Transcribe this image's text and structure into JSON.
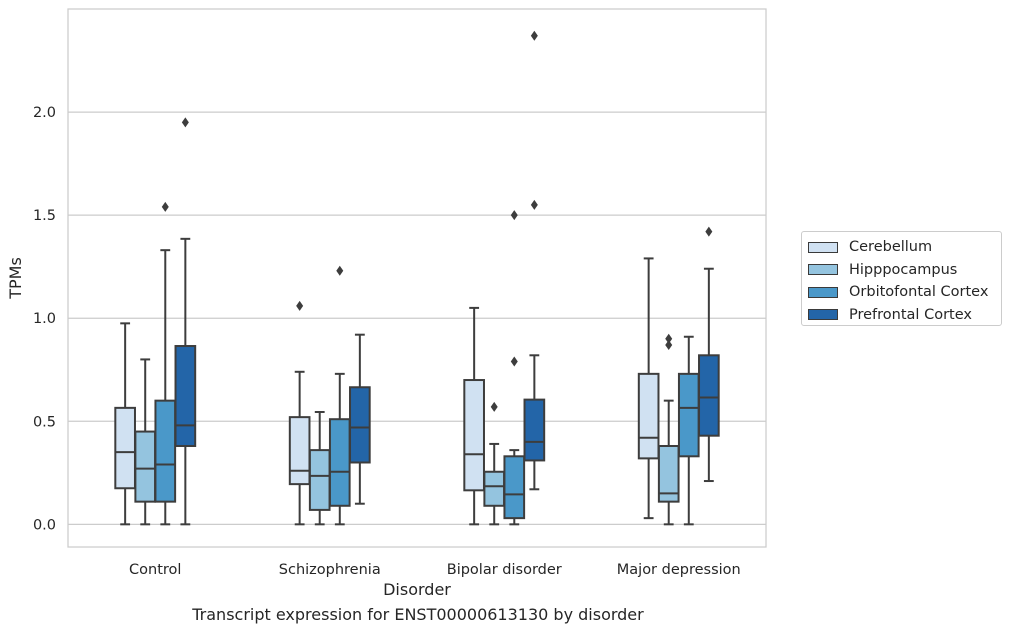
{
  "caption": "Transcript expression for ENST00000613130 by disorder",
  "chart_data": {
    "type": "box",
    "xlabel": "Disorder",
    "ylabel": "TPMs",
    "ylim": [
      -0.11,
      2.5
    ],
    "yticks": [
      0.0,
      0.5,
      1.0,
      1.5,
      2.0
    ],
    "ytick_labels": [
      "0.0",
      "0.5",
      "1.0",
      "1.5",
      "2.0"
    ],
    "grid": "horizontal",
    "legend_position": "right",
    "categories": [
      "Control",
      "Schizophrenia",
      "Bipolar disorder",
      "Major depression"
    ],
    "series": [
      {
        "name": "Cerebellum",
        "color": "#d0e1f2",
        "boxes": [
          {
            "whislo": 0.0,
            "q1": 0.175,
            "med": 0.35,
            "q3": 0.565,
            "whishi": 0.975,
            "fliers": []
          },
          {
            "whislo": 0.0,
            "q1": 0.195,
            "med": 0.26,
            "q3": 0.52,
            "whishi": 0.74,
            "fliers": [
              1.06
            ]
          },
          {
            "whislo": 0.0,
            "q1": 0.165,
            "med": 0.34,
            "q3": 0.7,
            "whishi": 1.05,
            "fliers": []
          },
          {
            "whislo": 0.03,
            "q1": 0.32,
            "med": 0.42,
            "q3": 0.73,
            "whishi": 1.29,
            "fliers": []
          }
        ]
      },
      {
        "name": "Hipppocampus",
        "color": "#94c4df",
        "boxes": [
          {
            "whislo": 0.0,
            "q1": 0.11,
            "med": 0.27,
            "q3": 0.45,
            "whishi": 0.8,
            "fliers": []
          },
          {
            "whislo": 0.0,
            "q1": 0.07,
            "med": 0.235,
            "q3": 0.36,
            "whishi": 0.545,
            "fliers": []
          },
          {
            "whislo": 0.0,
            "q1": 0.09,
            "med": 0.185,
            "q3": 0.255,
            "whishi": 0.39,
            "fliers": [
              0.57
            ]
          },
          {
            "whislo": 0.0,
            "q1": 0.11,
            "med": 0.15,
            "q3": 0.38,
            "whishi": 0.6,
            "fliers": [
              0.87,
              0.9
            ]
          }
        ]
      },
      {
        "name": "Orbitofontal Cortex",
        "color": "#4a98c9",
        "boxes": [
          {
            "whislo": 0.0,
            "q1": 0.11,
            "med": 0.29,
            "q3": 0.6,
            "whishi": 1.33,
            "fliers": [
              1.54
            ]
          },
          {
            "whislo": 0.0,
            "q1": 0.09,
            "med": 0.255,
            "q3": 0.51,
            "whishi": 0.73,
            "fliers": [
              1.23
            ]
          },
          {
            "whislo": 0.0,
            "q1": 0.03,
            "med": 0.145,
            "q3": 0.33,
            "whishi": 0.36,
            "fliers": [
              0.79,
              1.5
            ]
          },
          {
            "whislo": 0.0,
            "q1": 0.33,
            "med": 0.565,
            "q3": 0.73,
            "whishi": 0.91,
            "fliers": []
          }
        ]
      },
      {
        "name": "Prefrontal Cortex",
        "color": "#2365a8",
        "boxes": [
          {
            "whislo": 0.0,
            "q1": 0.38,
            "med": 0.48,
            "q3": 0.865,
            "whishi": 1.385,
            "fliers": [
              1.95
            ]
          },
          {
            "whislo": 0.1,
            "q1": 0.3,
            "med": 0.47,
            "q3": 0.665,
            "whishi": 0.92,
            "fliers": []
          },
          {
            "whislo": 0.17,
            "q1": 0.31,
            "med": 0.4,
            "q3": 0.605,
            "whishi": 0.82,
            "fliers": [
              1.55,
              2.37
            ]
          },
          {
            "whislo": 0.21,
            "q1": 0.43,
            "med": 0.615,
            "q3": 0.82,
            "whishi": 1.24,
            "fliers": [
              1.42
            ]
          }
        ]
      }
    ]
  }
}
